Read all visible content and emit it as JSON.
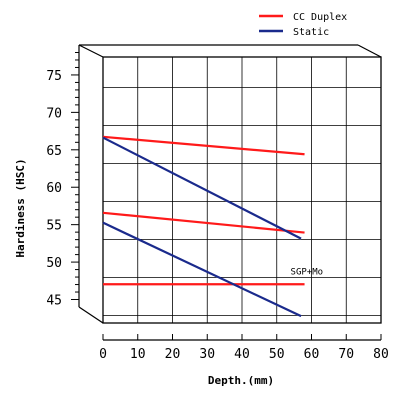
{
  "chart_data": {
    "type": "line",
    "title": "",
    "xlabel": "Depth.(mm)",
    "ylabel": "Hardiness (HSC)",
    "xlim": [
      0,
      80
    ],
    "ylim": [
      45,
      79
    ],
    "xticks": [
      0,
      10,
      20,
      30,
      40,
      50,
      60,
      70,
      80
    ],
    "yticks": [
      45,
      50,
      55,
      60,
      65,
      70,
      75
    ],
    "grid": true,
    "legend_position": "top-right",
    "legend": [
      {
        "label": "CC Duplex",
        "color": "#ff1a1a"
      },
      {
        "label": "Static",
        "color": "#1a2a8c"
      }
    ],
    "series": [
      {
        "name": "CC Duplex",
        "color": "#ff1a1a",
        "x": [
          0,
          58
        ],
        "y": [
          68.5,
          66.2
        ]
      },
      {
        "name": "CC Duplex",
        "color": "#ff1a1a",
        "x": [
          0,
          58
        ],
        "y": [
          58.5,
          55.9
        ]
      },
      {
        "name": "CC Duplex",
        "color": "#ff1a1a",
        "x": [
          0,
          58
        ],
        "y": [
          49.1,
          49.1
        ]
      },
      {
        "name": "Static",
        "color": "#1a2a8c",
        "x": [
          0,
          57
        ],
        "y": [
          68.4,
          55.1
        ]
      },
      {
        "name": "Static",
        "color": "#1a2a8c",
        "x": [
          0,
          57
        ],
        "y": [
          57.2,
          44.9
        ]
      }
    ],
    "annotations": [
      {
        "text": "SGP+Mo",
        "x": 58,
        "y": 50.8
      }
    ]
  }
}
